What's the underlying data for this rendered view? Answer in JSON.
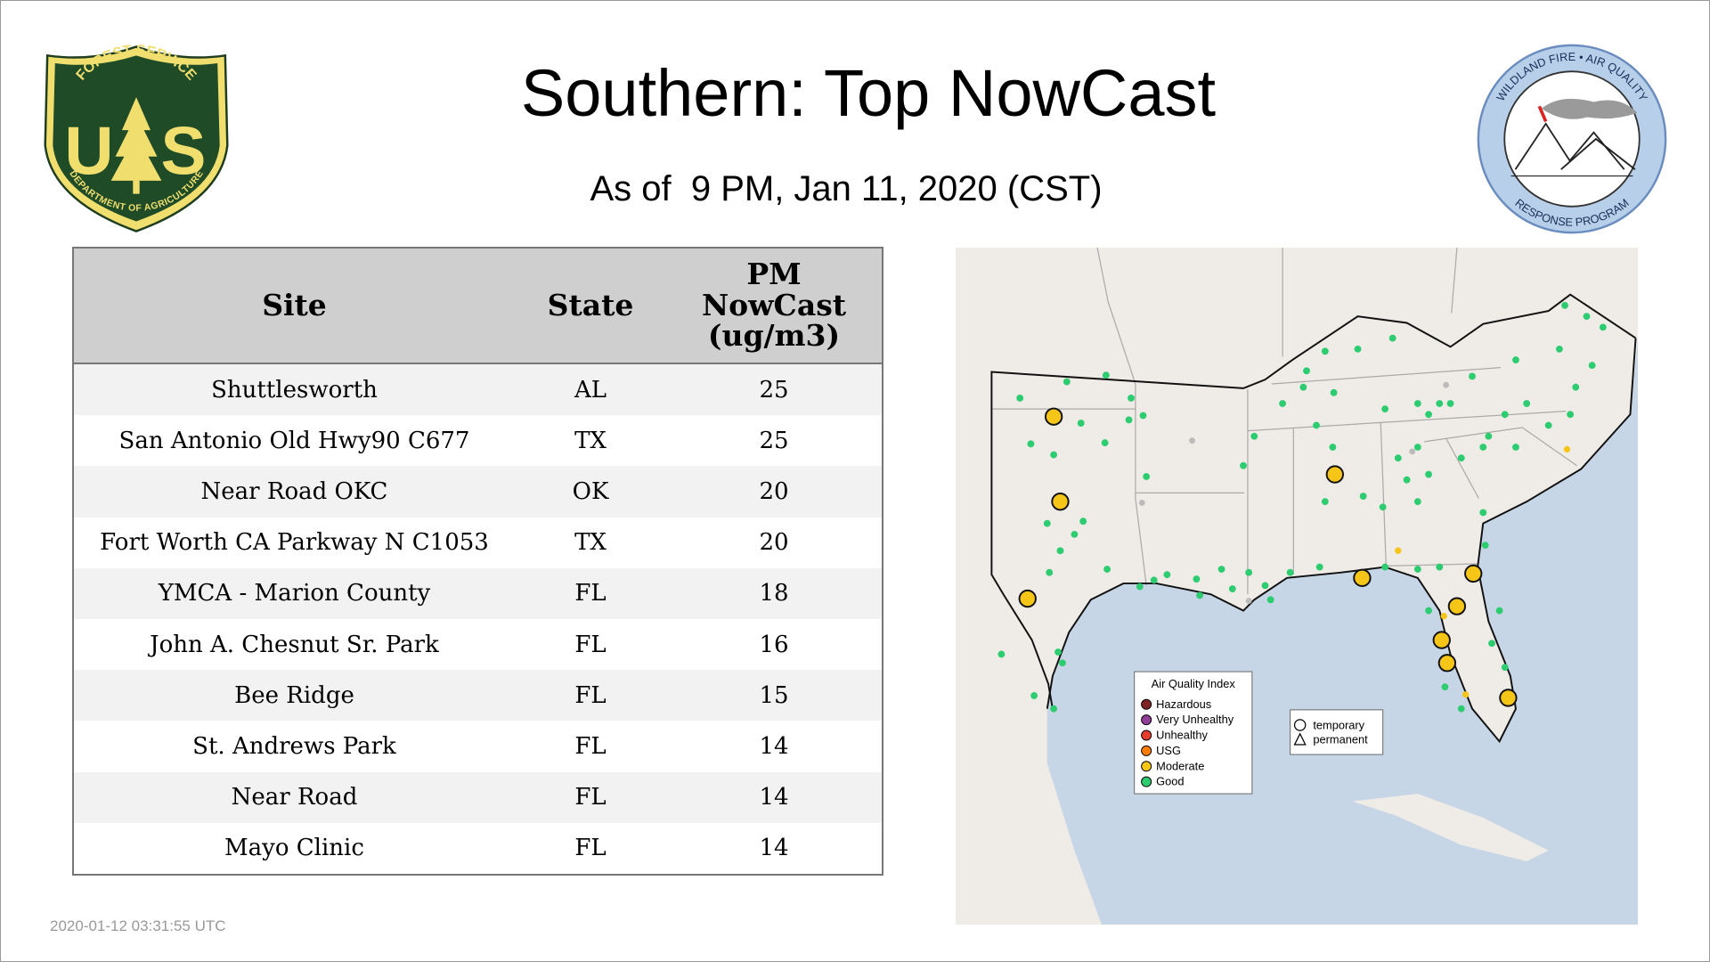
{
  "header": {
    "title": "Southern: Top NowCast",
    "subtitle": "As of  9 PM, Jan 11, 2020 (CST)"
  },
  "logos": {
    "forest_service": {
      "top": "FOREST SERVICE",
      "letters": [
        "U",
        "S"
      ],
      "bottom": "DEPARTMENT OF AGRICULTURE"
    },
    "wildland_fire": {
      "top": "WILDLAND FIRE • AIR QUALITY",
      "bottom": "RESPONSE PROGRAM"
    }
  },
  "table": {
    "headers": [
      "Site",
      "State",
      "PM NowCast (ug/m3)"
    ],
    "rows": [
      [
        "Shuttlesworth",
        "AL",
        25
      ],
      [
        "San Antonio Old Hwy90 C677",
        "TX",
        25
      ],
      [
        "Near Road OKC",
        "OK",
        20
      ],
      [
        "Fort Worth CA Parkway N C1053",
        "TX",
        20
      ],
      [
        "YMCA - Marion County",
        "FL",
        18
      ],
      [
        "John A. Chesnut Sr. Park",
        "FL",
        16
      ],
      [
        "Bee Ridge",
        "FL",
        15
      ],
      [
        "St. Andrews Park",
        "FL",
        14
      ],
      [
        "Near Road",
        "FL",
        14
      ],
      [
        "Mayo Clinic",
        "FL",
        14
      ]
    ]
  },
  "map": {
    "legend": {
      "title": "Air Quality Index",
      "items": [
        "Hazardous",
        "Very Unhealthy",
        "Unhealthy",
        "USG",
        "Moderate",
        "Good"
      ]
    },
    "site_types": [
      "temporary",
      "permanent"
    ]
  },
  "footer": {
    "timestamp": "2020-01-12 03:31:55 UTC"
  }
}
